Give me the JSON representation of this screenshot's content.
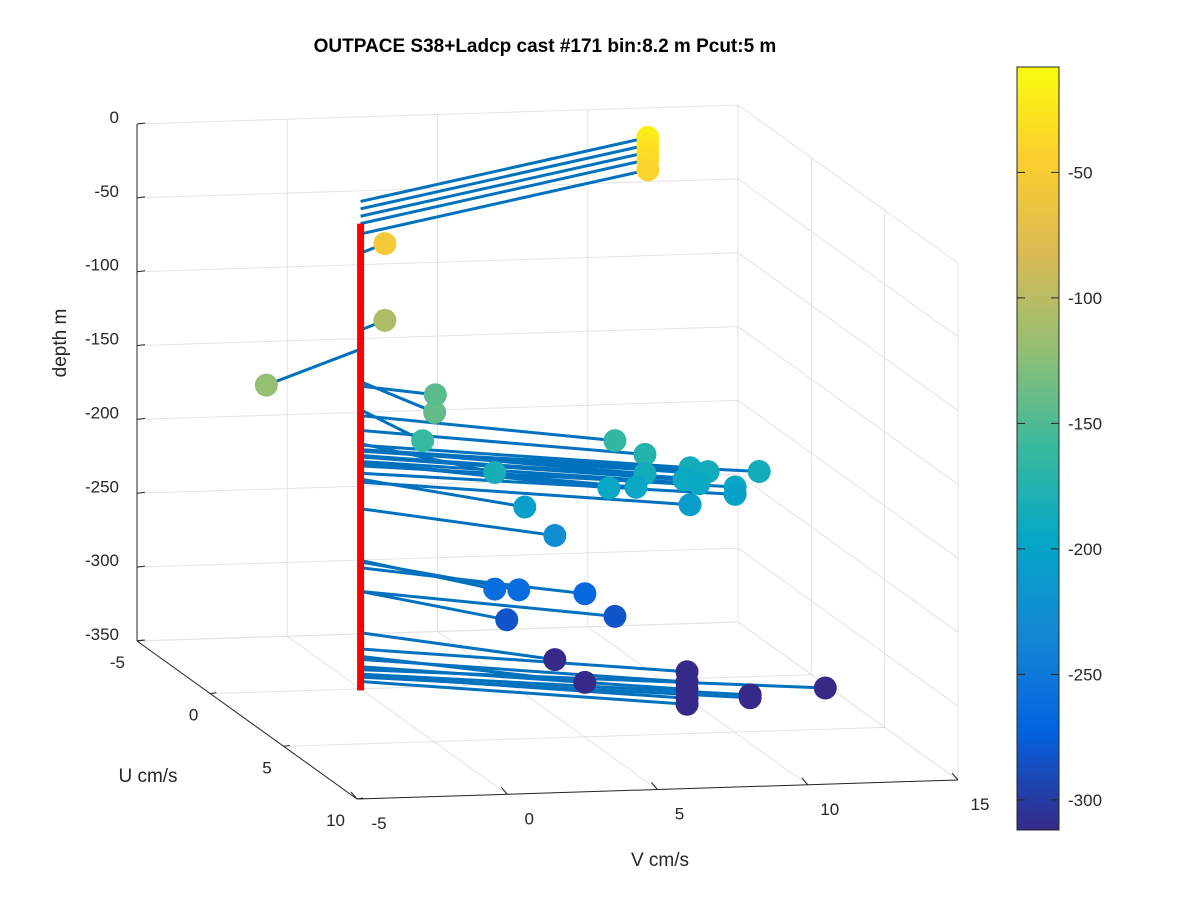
{
  "chart_data": {
    "type": "scatter",
    "title": "OUTPACE S38+Ladcp cast #171 bin:8.2 m  Pcut:5 m",
    "xlabel": "U cm/s",
    "ylabel": "V cm/s",
    "zlabel": "depth m",
    "xlim": [
      -5,
      10
    ],
    "ylim": [
      -5,
      15
    ],
    "zlim": [
      -350,
      0
    ],
    "x_ticks": [
      "-5",
      "0",
      "5",
      "10"
    ],
    "y_ticks": [
      "-5",
      "0",
      "5",
      "10",
      "15"
    ],
    "z_ticks": [
      "0",
      "-50",
      "-100",
      "-150",
      "-200",
      "-250",
      "-300",
      "-350"
    ],
    "grid": true,
    "colormap": "parula",
    "colorbar": {
      "range": [
        -312,
        -8
      ],
      "ticks": [
        "-50",
        "-100",
        "-150",
        "-200",
        "-250",
        "-300"
      ],
      "tick_values": [
        -50,
        -100,
        -150,
        -200,
        -250,
        -300
      ]
    },
    "reference_line": {
      "color": "#ff0000",
      "depth_range": [
        -351,
        -35
      ]
    },
    "series": [
      {
        "values": [
          {
            "u": -5,
            "v": 12.0,
            "z": -20
          },
          {
            "u": -5,
            "v": 12.0,
            "z": -25
          },
          {
            "u": -5,
            "v": 12.0,
            "z": -30
          },
          {
            "u": -5,
            "v": 12.0,
            "z": -35
          },
          {
            "u": -5,
            "v": 12.0,
            "z": -42
          },
          {
            "u": -0.8,
            "v": 1.2,
            "z": -55
          },
          {
            "u": -0.8,
            "v": 1.2,
            "z": -107
          },
          {
            "u": 3.0,
            "v": -4.6,
            "z": -120
          },
          {
            "u": 3.0,
            "v": 1.0,
            "z": -142
          },
          {
            "u": 1.0,
            "v": 2.0,
            "z": -145
          },
          {
            "u": 3.0,
            "v": 0.6,
            "z": -161
          },
          {
            "u": 3.0,
            "v": 7.0,
            "z": -165
          },
          {
            "u": 3.0,
            "v": 8.0,
            "z": -175
          },
          {
            "u": 3.0,
            "v": 3.0,
            "z": -184
          },
          {
            "u": 3.0,
            "v": 9.5,
            "z": -185
          },
          {
            "u": 3.0,
            "v": 8.0,
            "z": -188
          },
          {
            "u": 3.0,
            "v": 10.1,
            "z": -188
          },
          {
            "u": 3.0,
            "v": 9.8,
            "z": -189
          },
          {
            "u": 3.0,
            "v": 11.8,
            "z": -189
          },
          {
            "u": 3.0,
            "v": 9.4,
            "z": -192
          },
          {
            "u": 3.0,
            "v": 9.3,
            "z": -193
          },
          {
            "u": 3.0,
            "v": 9.8,
            "z": -196
          },
          {
            "u": 3.0,
            "v": 11.0,
            "z": -199
          },
          {
            "u": 3.0,
            "v": 7.7,
            "z": -197
          },
          {
            "u": 3.0,
            "v": 6.8,
            "z": -197
          },
          {
            "u": 3.0,
            "v": 11.0,
            "z": -204
          },
          {
            "u": 3.0,
            "v": 9.5,
            "z": -210
          },
          {
            "u": 3.0,
            "v": 4.0,
            "z": -208
          },
          {
            "u": 3.0,
            "v": 5.0,
            "z": -228
          },
          {
            "u": 3.0,
            "v": 3.0,
            "z": -263
          },
          {
            "u": 3.0,
            "v": 3.8,
            "z": -264
          },
          {
            "u": 3.0,
            "v": 6.0,
            "z": -268
          },
          {
            "u": 3.0,
            "v": 3.4,
            "z": -284
          },
          {
            "u": 3.0,
            "v": 7.0,
            "z": -284
          },
          {
            "u": 3.0,
            "v": 5.0,
            "z": -312
          },
          {
            "u": 3.0,
            "v": 9.4,
            "z": -323
          },
          {
            "u": 3.0,
            "v": 6.0,
            "z": -328
          },
          {
            "u": 3.0,
            "v": 9.4,
            "z": -330
          },
          {
            "u": 3.0,
            "v": 9.4,
            "z": -335
          },
          {
            "u": 3.0,
            "v": 14.0,
            "z": -337
          },
          {
            "u": 3.0,
            "v": 11.5,
            "z": -340
          },
          {
            "u": 3.0,
            "v": 11.5,
            "z": -342
          },
          {
            "u": 3.0,
            "v": 9.4,
            "z": -341
          },
          {
            "u": 3.0,
            "v": 9.4,
            "z": -345
          }
        ]
      }
    ]
  }
}
